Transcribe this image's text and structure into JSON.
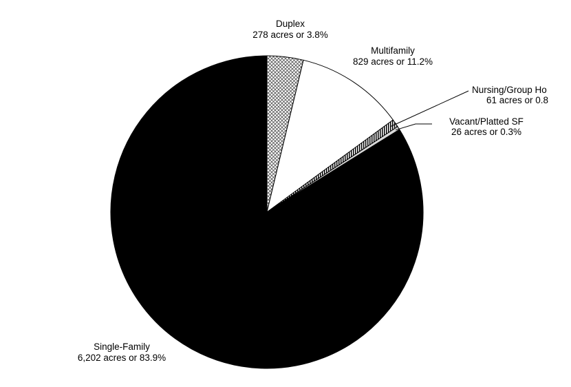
{
  "chart_data": {
    "type": "pie",
    "unit": "acres",
    "slices": [
      {
        "label": "Duplex",
        "value": 278,
        "percent": 3.8,
        "text": "278 acres or 3.8%",
        "fill": "crosshatch"
      },
      {
        "label": "Multifamily",
        "value": 829,
        "percent": 11.2,
        "text": "829 acres or 11.2%",
        "fill": "#ffffff"
      },
      {
        "label": "Nursing/Group Ho",
        "value": 61,
        "percent": 0.8,
        "text": "61 acres or 0.8",
        "fill": "vertical-stripes"
      },
      {
        "label": "Vacant/Platted SF",
        "value": 26,
        "percent": 0.3,
        "text": "26 acres or 0.3%",
        "fill": "#d9d9d9"
      },
      {
        "label": "Single-Family",
        "value": 6202,
        "percent": 83.9,
        "text": "6,202 acres or 83.9%",
        "fill": "#000000"
      }
    ]
  }
}
